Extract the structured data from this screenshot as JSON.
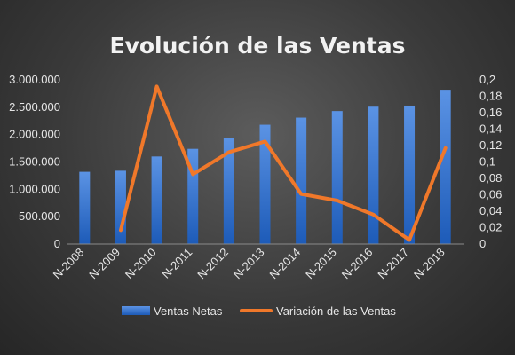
{
  "chart_data": {
    "type": "bar",
    "title": "Evolución de las Ventas",
    "categories": [
      "N-2008",
      "N-2009",
      "N-2010",
      "N-2011",
      "N-2012",
      "N-2013",
      "N-2014",
      "N-2015",
      "N-2016",
      "N-2017",
      "N-2018"
    ],
    "series": [
      {
        "name": "Ventas Netas",
        "type": "bar",
        "axis": "left",
        "color": "#3b78d0",
        "values": [
          1320000,
          1340000,
          1600000,
          1740000,
          1940000,
          2180000,
          2310000,
          2430000,
          2510000,
          2530000,
          2820000
        ]
      },
      {
        "name": "Variación de las Ventas",
        "type": "line",
        "axis": "right",
        "color": "#f0782a",
        "values": [
          null,
          0.017,
          0.192,
          0.085,
          0.112,
          0.125,
          0.061,
          0.053,
          0.036,
          0.005,
          0.117
        ]
      }
    ],
    "y_left": {
      "ylim": [
        0,
        3000000
      ],
      "ticks": [
        0,
        500000,
        1000000,
        1500000,
        2000000,
        2500000,
        3000000
      ],
      "tick_labels": [
        "0",
        "500.000",
        "1.000.000",
        "1.500.000",
        "2.000.000",
        "2.500.000",
        "3.000.000"
      ]
    },
    "y_right": {
      "ylim": [
        0,
        0.2
      ],
      "ticks": [
        0,
        0.02,
        0.04,
        0.06,
        0.08,
        0.1,
        0.12,
        0.14,
        0.16,
        0.18,
        0.2
      ],
      "tick_labels": [
        "0",
        "0,02",
        "0,04",
        "0,06",
        "0,08",
        "0,1",
        "0,12",
        "0,14",
        "0,16",
        "0,18",
        "0,2"
      ]
    },
    "grid": false,
    "legend_position": "bottom"
  }
}
